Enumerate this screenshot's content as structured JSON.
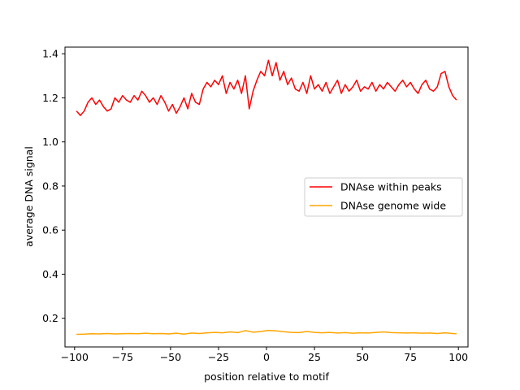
{
  "chart_data": {
    "type": "line",
    "title": "",
    "xlabel": "position relative to motif",
    "ylabel": "average DNA signal",
    "xlim": [
      -105,
      105
    ],
    "ylim": [
      0.07,
      1.43
    ],
    "x_ticks": [
      -100,
      -75,
      -50,
      -25,
      0,
      25,
      50,
      75,
      100
    ],
    "x_tick_labels": [
      "−100",
      "−75",
      "−50",
      "−25",
      "0",
      "25",
      "50",
      "75",
      "100"
    ],
    "y_ticks": [
      0.2,
      0.4,
      0.6,
      0.8,
      1.0,
      1.2,
      1.4
    ],
    "y_tick_labels": [
      "0.2",
      "0.4",
      "0.6",
      "0.8",
      "1.0",
      "1.2",
      "1.4"
    ],
    "grid": false,
    "legend_position": "center-right",
    "series": [
      {
        "name": "DNAse within peaks",
        "color": "#ff0000",
        "x": [
          -99,
          -97,
          -95,
          -93,
          -91,
          -89,
          -87,
          -85,
          -83,
          -81,
          -79,
          -77,
          -75,
          -73,
          -71,
          -69,
          -67,
          -65,
          -63,
          -61,
          -59,
          -57,
          -55,
          -53,
          -51,
          -49,
          -47,
          -45,
          -43,
          -41,
          -39,
          -37,
          -35,
          -33,
          -31,
          -29,
          -27,
          -25,
          -23,
          -21,
          -19,
          -17,
          -15,
          -13,
          -11,
          -9,
          -7,
          -5,
          -3,
          -1,
          1,
          3,
          5,
          7,
          9,
          11,
          13,
          15,
          17,
          19,
          21,
          23,
          25,
          27,
          29,
          31,
          33,
          35,
          37,
          39,
          41,
          43,
          45,
          47,
          49,
          51,
          53,
          55,
          57,
          59,
          61,
          63,
          65,
          67,
          69,
          71,
          73,
          75,
          77,
          79,
          81,
          83,
          85,
          87,
          89,
          91,
          93,
          95,
          97,
          99
        ],
        "values": [
          1.14,
          1.12,
          1.14,
          1.18,
          1.2,
          1.17,
          1.19,
          1.16,
          1.14,
          1.15,
          1.2,
          1.18,
          1.21,
          1.19,
          1.18,
          1.21,
          1.19,
          1.23,
          1.21,
          1.18,
          1.2,
          1.17,
          1.21,
          1.18,
          1.14,
          1.17,
          1.13,
          1.16,
          1.2,
          1.15,
          1.22,
          1.18,
          1.17,
          1.24,
          1.27,
          1.25,
          1.28,
          1.26,
          1.3,
          1.22,
          1.27,
          1.24,
          1.28,
          1.22,
          1.3,
          1.15,
          1.23,
          1.28,
          1.32,
          1.3,
          1.37,
          1.3,
          1.36,
          1.28,
          1.32,
          1.26,
          1.29,
          1.24,
          1.23,
          1.27,
          1.22,
          1.3,
          1.24,
          1.26,
          1.23,
          1.27,
          1.22,
          1.25,
          1.28,
          1.22,
          1.26,
          1.23,
          1.25,
          1.28,
          1.23,
          1.25,
          1.24,
          1.27,
          1.23,
          1.26,
          1.24,
          1.27,
          1.25,
          1.23,
          1.26,
          1.28,
          1.25,
          1.27,
          1.24,
          1.22,
          1.26,
          1.28,
          1.24,
          1.23,
          1.25,
          1.31,
          1.32,
          1.25,
          1.21,
          1.19
        ],
        "labels": [
          "",
          "",
          "",
          "",
          "",
          "",
          "",
          "",
          "",
          "",
          "",
          "",
          "",
          "",
          "",
          "",
          "",
          "",
          "",
          "",
          "",
          "",
          "",
          "",
          "",
          "",
          "",
          "",
          "",
          "",
          "",
          "",
          "",
          "",
          "",
          "",
          "",
          "",
          "",
          "",
          "",
          "",
          "",
          "",
          "",
          "",
          "",
          "",
          "",
          "",
          "",
          "",
          "",
          "",
          "",
          "",
          "",
          "",
          "",
          "",
          "",
          "",
          "",
          "",
          "",
          "",
          "",
          "",
          "",
          "",
          "",
          "",
          "",
          "",
          "",
          "",
          "",
          "",
          "",
          "",
          "",
          "",
          "",
          "",
          "",
          "",
          "",
          "",
          "",
          "",
          "",
          "",
          "",
          "",
          "",
          "",
          "",
          "",
          "",
          ""
        ]
      },
      {
        "name": "DNAse genome wide",
        "color": "#ffa500",
        "x": [
          -99,
          -95,
          -91,
          -87,
          -83,
          -79,
          -75,
          -71,
          -67,
          -63,
          -59,
          -55,
          -51,
          -47,
          -43,
          -39,
          -35,
          -31,
          -27,
          -23,
          -19,
          -15,
          -11,
          -7,
          -3,
          1,
          5,
          9,
          13,
          17,
          21,
          25,
          29,
          33,
          37,
          41,
          45,
          49,
          53,
          57,
          61,
          65,
          69,
          73,
          77,
          81,
          85,
          89,
          93,
          97,
          99
        ],
        "values": [
          0.127,
          0.128,
          0.13,
          0.129,
          0.131,
          0.129,
          0.13,
          0.131,
          0.13,
          0.132,
          0.13,
          0.131,
          0.129,
          0.132,
          0.128,
          0.133,
          0.131,
          0.134,
          0.136,
          0.134,
          0.138,
          0.135,
          0.144,
          0.137,
          0.14,
          0.145,
          0.143,
          0.139,
          0.136,
          0.135,
          0.14,
          0.136,
          0.134,
          0.136,
          0.133,
          0.135,
          0.132,
          0.134,
          0.133,
          0.136,
          0.138,
          0.135,
          0.134,
          0.133,
          0.134,
          0.132,
          0.133,
          0.131,
          0.134,
          0.131,
          0.13
        ]
      }
    ]
  }
}
